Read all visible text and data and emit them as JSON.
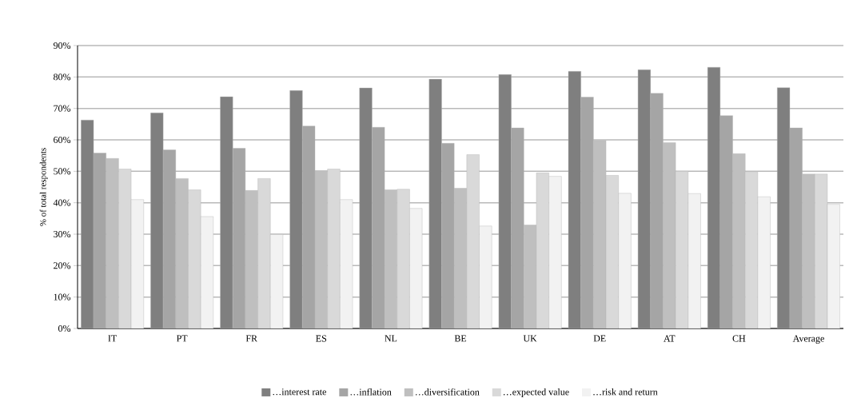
{
  "chart_data": {
    "type": "bar",
    "ylabel": "% of total respondents",
    "categories": [
      "IT",
      "PT",
      "FR",
      "ES",
      "NL",
      "BE",
      "UK",
      "DE",
      "AT",
      "CH",
      "Average"
    ],
    "series": [
      {
        "name": "…interest rate",
        "color": "#7f7f7f",
        "values": [
          66.3,
          68.6,
          73.7,
          75.7,
          76.5,
          79.3,
          80.8,
          81.8,
          82.3,
          83.1,
          76.6
        ]
      },
      {
        "name": "…inflation",
        "color": "#a5a5a5",
        "values": [
          55.8,
          56.8,
          57.3,
          64.4,
          64.0,
          58.9,
          63.8,
          73.6,
          74.8,
          67.7,
          63.8
        ]
      },
      {
        "name": "…diversification",
        "color": "#bfbfbf",
        "values": [
          54.1,
          47.7,
          43.9,
          50.2,
          44.1,
          44.6,
          32.9,
          59.8,
          59.1,
          55.6,
          49.1
        ]
      },
      {
        "name": "…expected value",
        "color": "#d9d9d9",
        "values": [
          50.7,
          44.1,
          47.7,
          50.7,
          44.3,
          55.3,
          49.5,
          48.7,
          50.0,
          49.9,
          49.1
        ]
      },
      {
        "name": "…risk and return",
        "color": "#f2f2f2",
        "values": [
          41.0,
          35.6,
          29.9,
          41.0,
          38.2,
          32.6,
          48.4,
          43.0,
          42.9,
          41.9,
          39.5
        ]
      }
    ],
    "ylim": [
      0,
      90
    ],
    "yticks": [
      {
        "value": 0,
        "label": "0%"
      },
      {
        "value": 10,
        "label": "10%"
      },
      {
        "value": 20,
        "label": "20%"
      },
      {
        "value": 30,
        "label": "30%"
      },
      {
        "value": 40,
        "label": "40%"
      },
      {
        "value": 50,
        "label": "50%"
      },
      {
        "value": 60,
        "label": "60%"
      },
      {
        "value": 70,
        "label": "70%"
      },
      {
        "value": 80,
        "label": "80%"
      },
      {
        "value": 90,
        "label": "90%"
      }
    ],
    "grid": "y",
    "legend": "bottom"
  }
}
